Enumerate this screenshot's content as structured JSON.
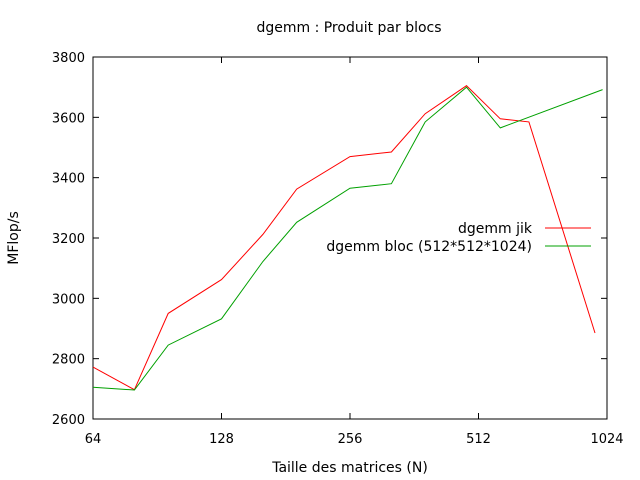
{
  "chart_data": {
    "type": "line",
    "title": "dgemm : Produit par blocs",
    "xlabel": "Taille des matrices (N)",
    "ylabel": "MFlop/s",
    "x_scale": "log2",
    "xlim": [
      64,
      1024
    ],
    "ylim": [
      2600,
      3800
    ],
    "x_ticks": [
      64,
      128,
      256,
      512,
      1024
    ],
    "x_tick_labels": [
      "64",
      "128",
      "256",
      "512",
      "1024"
    ],
    "y_ticks": [
      2600,
      2800,
      3000,
      3200,
      3400,
      3600,
      3800
    ],
    "y_tick_labels": [
      "2600",
      "2800",
      "3000",
      "3200",
      "3400",
      "3600",
      "3800"
    ],
    "grid": false,
    "legend_position": "right",
    "series": [
      {
        "name": "dgemm jik",
        "color": "#ff0000",
        "x": [
          64,
          80,
          96,
          128,
          160,
          192,
          256,
          320,
          384,
          480,
          576,
          672,
          960
        ],
        "y": [
          2772,
          2697,
          2950,
          3062,
          3212,
          3362,
          3470,
          3485,
          3612,
          3705,
          3595,
          3585,
          2885
        ]
      },
      {
        "name": "dgemm bloc (512*512*1024)",
        "color": "#00a000",
        "x": [
          64,
          80,
          96,
          128,
          160,
          192,
          256,
          320,
          384,
          480,
          576,
          1000
        ],
        "y": [
          2705,
          2696,
          2845,
          2932,
          3122,
          3252,
          3365,
          3380,
          3585,
          3700,
          3565,
          3692
        ]
      }
    ]
  }
}
